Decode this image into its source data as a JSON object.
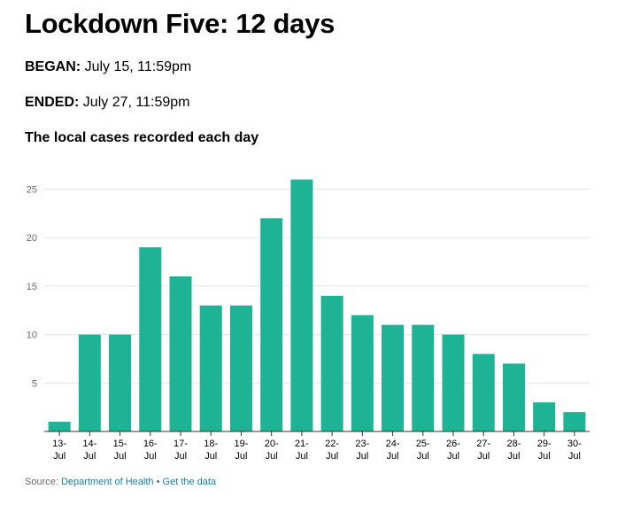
{
  "header": {
    "title": "Lockdown Five: 12 days",
    "began_label": "BEGAN:",
    "began_value": "July 15, 11:59pm",
    "ended_label": "ENDED:",
    "ended_value": "July 27, 11:59pm"
  },
  "chart_data": {
    "type": "bar",
    "title": "The local cases recorded each day",
    "xlabel": "",
    "ylabel": "",
    "categories": [
      "13-Jul",
      "14-Jul",
      "15-Jul",
      "16-Jul",
      "17-Jul",
      "18-Jul",
      "19-Jul",
      "20-Jul",
      "21-Jul",
      "22-Jul",
      "23-Jul",
      "24-Jul",
      "25-Jul",
      "26-Jul",
      "27-Jul",
      "28-Jul",
      "29-Jul",
      "30-Jul"
    ],
    "values": [
      1,
      10,
      10,
      19,
      16,
      13,
      13,
      22,
      26,
      14,
      12,
      11,
      11,
      10,
      8,
      7,
      3,
      2
    ],
    "ylim": [
      0,
      28
    ],
    "yticks": [
      5,
      10,
      15,
      20,
      25
    ],
    "grid": true,
    "bar_color": "#1db394"
  },
  "source": {
    "prefix": "Source:",
    "link_text": "Department of Health",
    "separator": "•",
    "data_link_text": "Get the data"
  }
}
